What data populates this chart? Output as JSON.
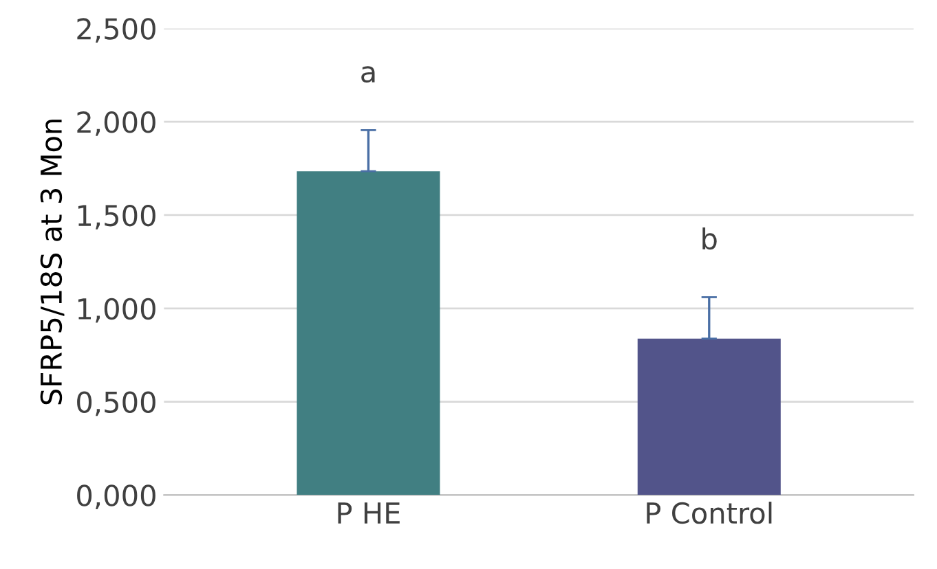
{
  "chart_data": {
    "type": "bar",
    "ylabel": "SFRP5/18S at 3 Mon",
    "categories": [
      "P HE",
      "P Control"
    ],
    "values": [
      1.735,
      0.838
    ],
    "colors": [
      "#417f82",
      "#52548a"
    ],
    "errors": [
      [
        1.735,
        1.955
      ],
      [
        0.838,
        1.06
      ]
    ],
    "ylim": [
      0,
      2.5
    ],
    "yticks": [
      {
        "value": 0,
        "label": "0,000"
      },
      {
        "value": 0.5,
        "label": "0,500"
      },
      {
        "value": 1.0,
        "label": "1,000"
      },
      {
        "value": 1.5,
        "label": "1,500"
      },
      {
        "value": 2.0,
        "label": "2,000"
      },
      {
        "value": 2.5,
        "label": "2,500"
      }
    ],
    "grid": "y",
    "annotations": [
      "a",
      "b"
    ]
  }
}
